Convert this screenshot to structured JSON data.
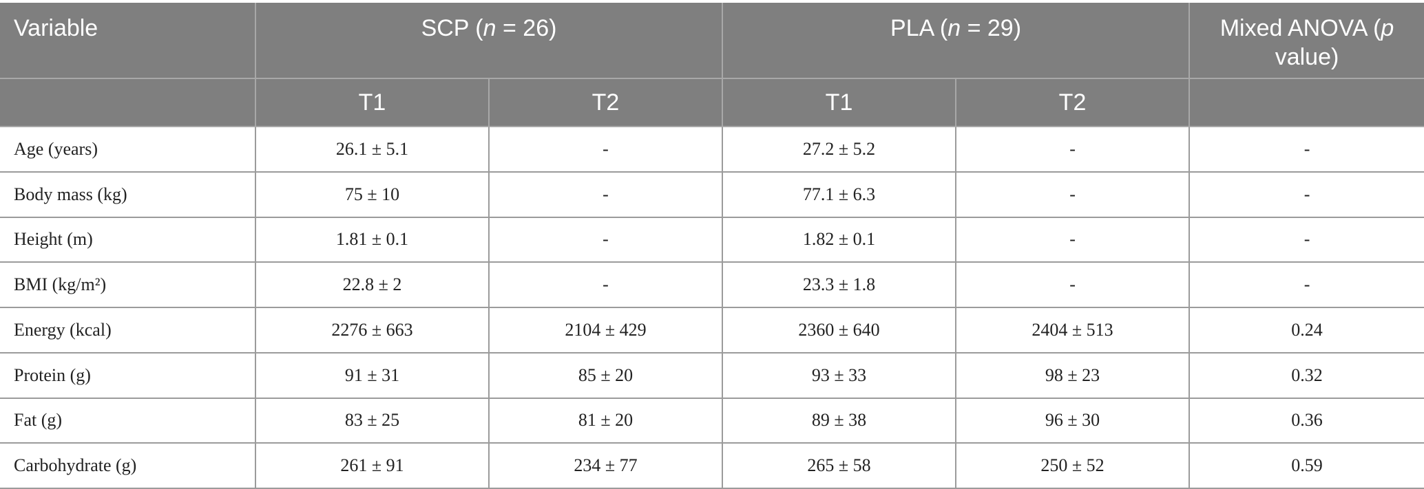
{
  "table": {
    "header": [
      {
        "segments": [
          {
            "text": "Variable"
          }
        ]
      },
      {
        "segments": [
          {
            "text": "SCP ("
          },
          {
            "text": "n",
            "italic": true
          },
          {
            "text": " = 26)"
          }
        ]
      },
      {
        "segments": [
          {
            "text": "PLA ("
          },
          {
            "text": "n",
            "italic": true
          },
          {
            "text": " = 29)"
          }
        ]
      },
      {
        "segments": [
          {
            "text": "Mixed ANOVA ("
          },
          {
            "text": "p",
            "italic": true
          },
          {
            "text": " value)"
          }
        ]
      }
    ],
    "subheader": [
      "T1",
      "T2",
      "T1",
      "T2"
    ],
    "rows": [
      [
        "Age (years)",
        "26.1 ± 5.1",
        "-",
        "27.2 ± 5.2",
        "-",
        "-"
      ],
      [
        "Body mass (kg)",
        "75 ± 10",
        "-",
        "77.1 ± 6.3",
        "-",
        "-"
      ],
      [
        "Height (m)",
        "1.81 ± 0.1",
        "-",
        "1.82 ± 0.1",
        "-",
        "-"
      ],
      [
        "BMI (kg/m²)",
        "22.8 ± 2",
        "-",
        "23.3 ± 1.8",
        "-",
        "-"
      ],
      [
        "Energy (kcal)",
        "2276 ± 663",
        "2104 ± 429",
        "2360 ± 640",
        "2404 ± 513",
        "0.24"
      ],
      [
        "Protein (g)",
        "91 ± 31",
        "85 ± 20",
        "93 ± 33",
        "98 ± 23",
        "0.32"
      ],
      [
        "Fat (g)",
        "83 ± 25",
        "81 ± 20",
        "89 ± 38",
        "96 ± 30",
        "0.36"
      ],
      [
        "Carbohydrate (g)",
        "261 ± 91",
        "234 ± 77",
        "265 ± 58",
        "250 ± 52",
        "0.59"
      ]
    ]
  }
}
